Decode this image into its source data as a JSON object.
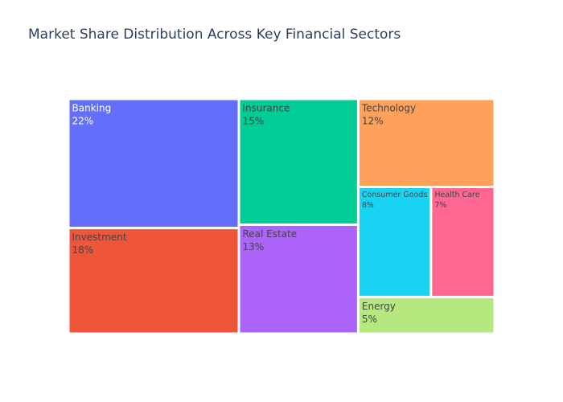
{
  "chart_data": {
    "type": "treemap",
    "title": "Market Share Distribution Across Key Financial Sectors",
    "items": [
      {
        "name": "Banking",
        "value": 22,
        "label": "22%",
        "color": "#636efa",
        "text_color": "#ffffff"
      },
      {
        "name": "Investment",
        "value": 18,
        "label": "18%",
        "color": "#ef553b",
        "text_color": "#444444"
      },
      {
        "name": "Insurance",
        "value": 15,
        "label": "15%",
        "color": "#00cc96",
        "text_color": "#444444"
      },
      {
        "name": "Real Estate",
        "value": 13,
        "label": "13%",
        "color": "#ab63fa",
        "text_color": "#444444"
      },
      {
        "name": "Technology",
        "value": 12,
        "label": "12%",
        "color": "#ffa15a",
        "text_color": "#444444"
      },
      {
        "name": "Consumer Goods",
        "value": 8,
        "label": "8%",
        "color": "#19d3f3",
        "text_color": "#444444"
      },
      {
        "name": "Health Care",
        "value": 7,
        "label": "7%",
        "color": "#ff6692",
        "text_color": "#444444"
      },
      {
        "name": "Energy",
        "value": 5,
        "label": "5%",
        "color": "#b6e880",
        "text_color": "#444444"
      }
    ]
  }
}
